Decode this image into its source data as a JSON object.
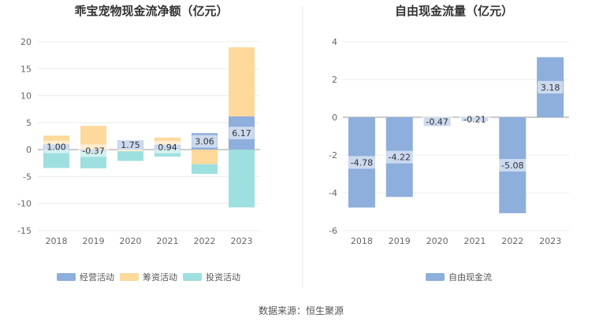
{
  "source": "数据来源：恒生聚源",
  "chart_data": [
    {
      "type": "bar",
      "stacked": true,
      "title": "乖宝宠物现金流净额（亿元）",
      "categories": [
        "2018",
        "2019",
        "2020",
        "2021",
        "2022",
        "2023"
      ],
      "ylim": [
        -15,
        20
      ],
      "yticks": [
        20,
        15,
        10,
        5,
        0,
        -5,
        -10,
        -15
      ],
      "grid": true,
      "legend_position": "bottom",
      "series": [
        {
          "name": "经营活动",
          "color": "#8eaedc",
          "values": [
            1.0,
            -0.37,
            1.75,
            0.94,
            3.06,
            6.17
          ],
          "show_labels": true
        },
        {
          "name": "筹资活动",
          "color": "#fdd99b",
          "values": [
            1.6,
            4.4,
            -0.3,
            1.3,
            -2.7,
            12.8
          ],
          "show_labels": false
        },
        {
          "name": "投资活动",
          "color": "#9ee0df",
          "values": [
            -3.4,
            -3.1,
            -1.8,
            -1.3,
            -1.8,
            -10.7
          ],
          "show_labels": false
        }
      ]
    },
    {
      "type": "bar",
      "title": "自由现金流量（亿元）",
      "categories": [
        "2018",
        "2019",
        "2020",
        "2021",
        "2022",
        "2023"
      ],
      "ylim": [
        -6,
        4
      ],
      "yticks": [
        4,
        2,
        0,
        -2,
        -4,
        -6
      ],
      "grid": true,
      "legend_position": "bottom",
      "series": [
        {
          "name": "自由现金流",
          "color": "#8eaedc",
          "values": [
            -4.78,
            -4.22,
            -0.47,
            -0.21,
            -5.08,
            3.18
          ],
          "show_labels": true
        }
      ]
    }
  ]
}
